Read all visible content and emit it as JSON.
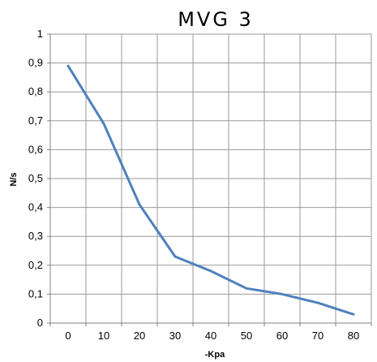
{
  "chart_data": {
    "type": "line",
    "title": "MVG 3",
    "xlabel": "-Kpa",
    "ylabel": "N/s",
    "categories": [
      "0",
      "10",
      "20",
      "30",
      "40",
      "50",
      "60",
      "70",
      "80"
    ],
    "y_ticks": [
      "0",
      "0,1",
      "0,2",
      "0,3",
      "0,4",
      "0,5",
      "0,6",
      "0,7",
      "0,8",
      "0,9",
      "1"
    ],
    "ylim": [
      0,
      1
    ],
    "grid": true,
    "legend": "none",
    "series": [
      {
        "values": [
          0.89,
          0.69,
          0.41,
          0.23,
          0.18,
          0.12,
          0.1,
          0.07,
          0.03
        ]
      }
    ],
    "colors": {
      "line": "#4f81bd",
      "grid": "#999999",
      "axis": "#808080"
    }
  }
}
